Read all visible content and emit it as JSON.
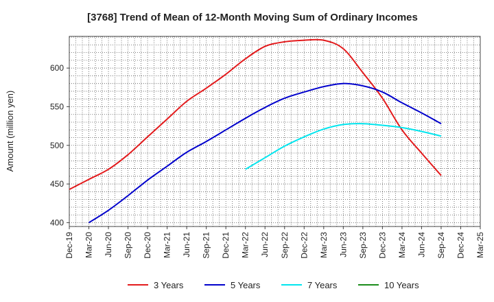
{
  "chart_data": {
    "type": "line",
    "title": "[3768]  Trend of Mean of 12-Month Moving Sum of Ordinary Incomes",
    "xlabel": "",
    "ylabel": "Amount (million yen)",
    "categories": [
      "Dec-19",
      "Mar-20",
      "Jun-20",
      "Sep-20",
      "Dec-20",
      "Mar-21",
      "Jun-21",
      "Sep-21",
      "Dec-21",
      "Mar-22",
      "Jun-22",
      "Sep-22",
      "Dec-22",
      "Mar-23",
      "Jun-23",
      "Sep-23",
      "Dec-23",
      "Mar-24",
      "Jun-24",
      "Sep-24",
      "Dec-24",
      "Mar-25"
    ],
    "ylim": [
      395,
      641
    ],
    "yticks": [
      400,
      450,
      500,
      550,
      600
    ],
    "grid": true,
    "series": [
      {
        "name": "3 Years",
        "color": "#e31a1c",
        "values": [
          443,
          456,
          469,
          488,
          511,
          534,
          557,
          574,
          592,
          612,
          628,
          634,
          636,
          636,
          625,
          594,
          561,
          520,
          490,
          461,
          null,
          null
        ]
      },
      {
        "name": "5 Years",
        "color": "#0000cc",
        "values": [
          null,
          400,
          416,
          435,
          455,
          473,
          491,
          505,
          520,
          535,
          549,
          561,
          569,
          576,
          580,
          577,
          569,
          555,
          542,
          528,
          null,
          null
        ]
      },
      {
        "name": "7 Years",
        "color": "#00e5ee",
        "values": [
          null,
          null,
          null,
          null,
          null,
          null,
          null,
          null,
          null,
          469,
          484,
          499,
          511,
          521,
          527,
          528,
          526,
          523,
          518,
          512,
          null,
          null
        ]
      },
      {
        "name": "10 Years",
        "color": "#1a8c1a",
        "values": [
          null,
          null,
          null,
          null,
          null,
          null,
          null,
          null,
          null,
          null,
          null,
          null,
          null,
          null,
          null,
          null,
          null,
          null,
          null,
          null,
          null,
          null
        ]
      }
    ]
  }
}
